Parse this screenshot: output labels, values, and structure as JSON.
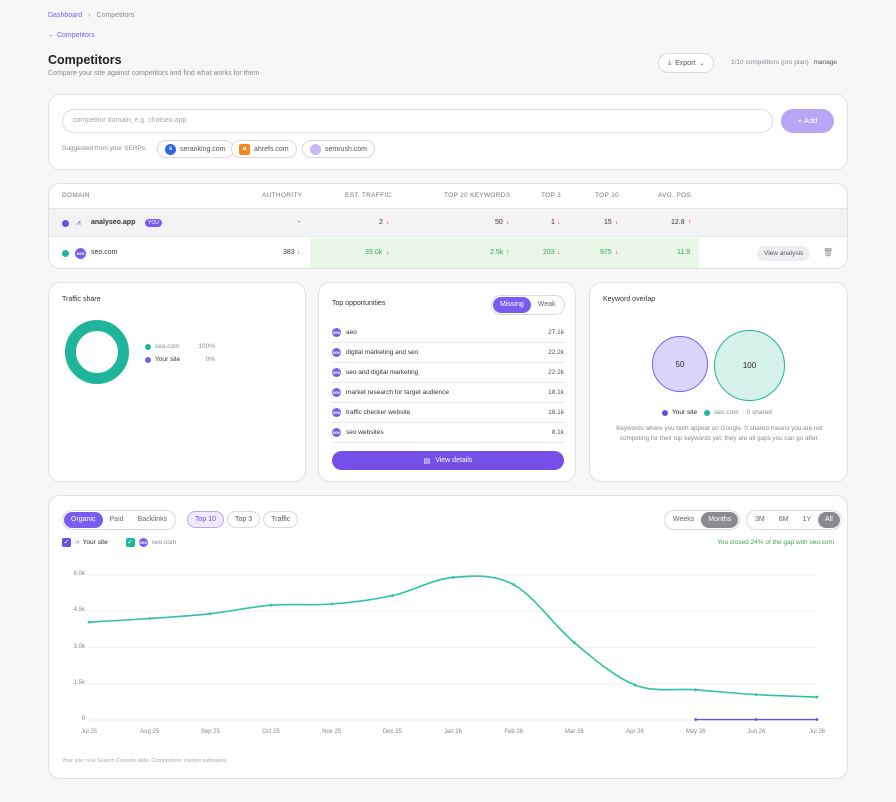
{
  "breadcrumb": {
    "root": "Dashboard",
    "sep": "›",
    "current": "Competitors"
  },
  "back_link": "← Competitors",
  "header": {
    "title": "Competitors",
    "subtitle": "Compare your site against competitors and find what works for them",
    "export_label": "Export",
    "plan_text": "1/10 competitors (pro plan)",
    "manage_label": "manage"
  },
  "add_form": {
    "placeholder": "competitor domain, e.g. chatseo.app",
    "add_label": "+ Add",
    "suggest_label": "Suggested from your SERPs:",
    "suggestions": [
      "seranking.com",
      "ahrefs.com",
      "semrush.com"
    ]
  },
  "table": {
    "headers": [
      "DOMAIN",
      "AUTHORITY",
      "EST. TRAFFIC",
      "TOP 20 KEYWORDS",
      "TOP 3",
      "TOP 10",
      "AVG. POS."
    ],
    "rows": [
      {
        "domain": "analyseo.app",
        "badge": "YOU",
        "authority": "-",
        "traffic": "2",
        "keywords": "50",
        "top3": "1",
        "top10": "15",
        "avgpos": "12.8"
      },
      {
        "domain": "seo.com",
        "authority": "383",
        "traffic": "39.0k",
        "keywords": "2.5k",
        "top3": "203",
        "top10": "975",
        "avgpos": "11.9",
        "action": "View analysis"
      }
    ],
    "arrows": {
      "down": "↓",
      "up": "↑"
    }
  },
  "traffic_share": {
    "title": "Traffic share",
    "items": [
      {
        "label": "seo.com",
        "value": "100%",
        "color": "#1fb59a"
      },
      {
        "label": "Your site",
        "value": "0%",
        "color": "#7b5cf0"
      }
    ]
  },
  "opportunities": {
    "title": "Top opportunities",
    "tab_missing": "Missing",
    "tab_weak": "Weak",
    "rows": [
      {
        "keyword": "aeo",
        "value": "27.1k"
      },
      {
        "keyword": "digital marketing and seo",
        "value": "22.2k"
      },
      {
        "keyword": "seo and digital marketing",
        "value": "22.2k"
      },
      {
        "keyword": "market research for target audience",
        "value": "18.1k"
      },
      {
        "keyword": "traffic checker website",
        "value": "18.1k"
      },
      {
        "keyword": "seo websites",
        "value": "8.1k"
      }
    ],
    "button_label": "View details"
  },
  "overlap": {
    "title": "Keyword overlap",
    "left_value": "50",
    "right_value": "100",
    "legend_you": "Your site",
    "legend_comp": "seo.com",
    "shared_text": "· 0 shared",
    "description": "Keywords where you both appear on Google. 0 shared means you are not competing for their top keywords yet; they are all gaps you can go after."
  },
  "chart_panel": {
    "tabs": [
      "Organic",
      "Paid",
      "Backlinks"
    ],
    "filters": [
      "Top 10",
      "Top 3",
      "Traffic"
    ],
    "period": [
      "Weeks",
      "Months"
    ],
    "ranges": [
      "3M",
      "6M",
      "1Y",
      "All"
    ],
    "legend_you": "Your site",
    "legend_comp": "seo.com",
    "gap_note": "You closed 24% of the gap with seo.com",
    "footnote": "Your site: real Search Console data. Competitors: market estimates."
  },
  "chart_data": {
    "type": "line",
    "x": [
      "Jul 25",
      "Aug 25",
      "Sep 25",
      "Oct 25",
      "Nov 25",
      "Dec 25",
      "Jan 26",
      "Feb 26",
      "Mar 26",
      "Apr 26",
      "May 26",
      "Jun 26",
      "Jul 26"
    ],
    "yticks": [
      "0",
      "1.5k",
      "3.0k",
      "4.5k",
      "6.0k"
    ],
    "ylim": [
      0,
      6000
    ],
    "series": [
      {
        "name": "seo.com",
        "color": "#2ec4a0",
        "values": [
          4050,
          4200,
          4400,
          4750,
          4800,
          5150,
          5900,
          5600,
          3200,
          1450,
          1250,
          1050,
          950
        ]
      },
      {
        "name": "Your site",
        "color": "#6a4fe0",
        "values": [
          null,
          null,
          null,
          null,
          null,
          null,
          null,
          null,
          null,
          null,
          20,
          20,
          20
        ]
      }
    ]
  },
  "colors": {
    "accent": "#7b5cf0",
    "teal": "#1fb59a",
    "green_bg": "#e8f7e6"
  }
}
